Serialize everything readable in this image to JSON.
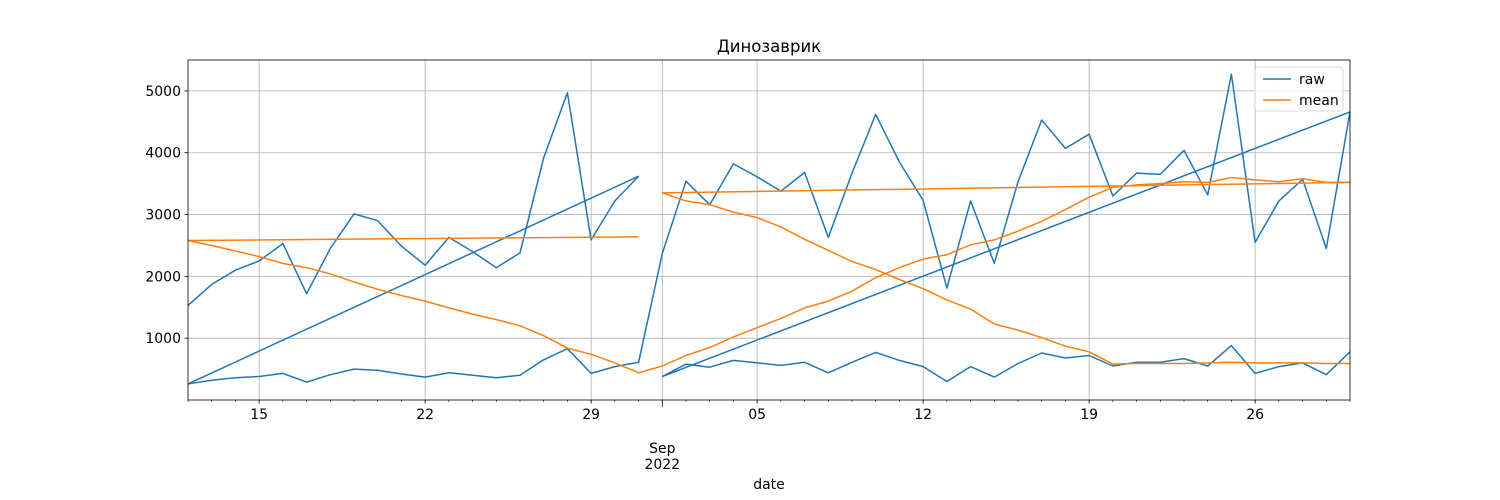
{
  "chart_data": {
    "type": "line",
    "title": "Динозаврик",
    "xlabel": "date",
    "ylabel": "",
    "xlim": [
      "2022-08-12",
      "2022-09-30"
    ],
    "ylim": [
      0,
      5500
    ],
    "grid": true,
    "legend": "top-right",
    "colors": {
      "raw": "#1f77b4",
      "mean": "#ff7f0e"
    },
    "x_ticks": [
      {
        "date": "2022-08-15",
        "label": "15"
      },
      {
        "date": "2022-08-22",
        "label": "22"
      },
      {
        "date": "2022-08-29",
        "label": "29"
      },
      {
        "date": "2022-09-01",
        "label": "Sep",
        "label2": "2022",
        "major": true
      },
      {
        "date": "2022-09-05",
        "label": "05"
      },
      {
        "date": "2022-09-12",
        "label": "12"
      },
      {
        "date": "2022-09-19",
        "label": "19"
      },
      {
        "date": "2022-09-26",
        "label": "26"
      }
    ],
    "y_ticks": [
      1000,
      2000,
      3000,
      4000,
      5000
    ],
    "series": [
      {
        "name": "raw",
        "color": "#1f77b4",
        "segments": [
          [
            [
              "2022-08-12",
              1530
            ],
            [
              "2022-08-13",
              1870
            ],
            [
              "2022-08-14",
              2100
            ],
            [
              "2022-08-15",
              2250
            ],
            [
              "2022-08-16",
              2530
            ],
            [
              "2022-08-17",
              1720
            ],
            [
              "2022-08-18",
              2450
            ],
            [
              "2022-08-19",
              3010
            ],
            [
              "2022-08-20",
              2900
            ],
            [
              "2022-08-21",
              2490
            ],
            [
              "2022-08-22",
              2180
            ],
            [
              "2022-08-23",
              2630
            ],
            [
              "2022-08-24",
              2400
            ],
            [
              "2022-08-25",
              2140
            ],
            [
              "2022-08-26",
              2380
            ],
            [
              "2022-08-27",
              3920
            ],
            [
              "2022-08-28",
              4970
            ],
            [
              "2022-08-29",
              2590
            ],
            [
              "2022-08-30",
              3220
            ],
            [
              "2022-08-31",
              3620
            ]
          ],
          [
            [
              "2022-08-12",
              260
            ],
            [
              "2022-08-31",
              3620
            ]
          ],
          [
            [
              "2022-08-12",
              260
            ],
            [
              "2022-08-13",
              320
            ],
            [
              "2022-08-14",
              360
            ],
            [
              "2022-08-15",
              380
            ],
            [
              "2022-08-16",
              430
            ],
            [
              "2022-08-17",
              290
            ],
            [
              "2022-08-18",
              410
            ],
            [
              "2022-08-19",
              500
            ],
            [
              "2022-08-20",
              480
            ],
            [
              "2022-08-21",
              420
            ],
            [
              "2022-08-22",
              370
            ],
            [
              "2022-08-23",
              440
            ],
            [
              "2022-08-24",
              400
            ],
            [
              "2022-08-25",
              360
            ],
            [
              "2022-08-26",
              400
            ],
            [
              "2022-08-27",
              650
            ],
            [
              "2022-08-28",
              830
            ],
            [
              "2022-08-29",
              430
            ],
            [
              "2022-08-30",
              540
            ],
            [
              "2022-08-31",
              610
            ],
            [
              "2022-09-01",
              2370
            ],
            [
              "2022-09-02",
              3540
            ],
            [
              "2022-09-03",
              3160
            ],
            [
              "2022-09-04",
              3820
            ],
            [
              "2022-09-05",
              3610
            ],
            [
              "2022-09-06",
              3380
            ],
            [
              "2022-09-07",
              3680
            ],
            [
              "2022-09-08",
              2630
            ],
            [
              "2022-09-09",
              3670
            ],
            [
              "2022-09-10",
              4620
            ],
            [
              "2022-09-11",
              3850
            ],
            [
              "2022-09-12",
              3230
            ],
            [
              "2022-09-13",
              1810
            ],
            [
              "2022-09-14",
              3220
            ],
            [
              "2022-09-15",
              2210
            ],
            [
              "2022-09-16",
              3530
            ],
            [
              "2022-09-17",
              4530
            ],
            [
              "2022-09-18",
              4070
            ],
            [
              "2022-09-19",
              4300
            ],
            [
              "2022-09-20",
              3300
            ],
            [
              "2022-09-21",
              3670
            ],
            [
              "2022-09-22",
              3650
            ],
            [
              "2022-09-23",
              4040
            ],
            [
              "2022-09-24",
              3320
            ],
            [
              "2022-09-25",
              5270
            ],
            [
              "2022-09-26",
              2550
            ],
            [
              "2022-09-27",
              3220
            ],
            [
              "2022-09-28",
              3570
            ],
            [
              "2022-09-29",
              2450
            ],
            [
              "2022-09-30",
              4660
            ]
          ],
          [
            [
              "2022-09-01",
              380
            ],
            [
              "2022-09-30",
              4660
            ]
          ],
          [
            [
              "2022-09-01",
              380
            ],
            [
              "2022-09-02",
              580
            ],
            [
              "2022-09-03",
              530
            ],
            [
              "2022-09-04",
              640
            ],
            [
              "2022-09-05",
              600
            ],
            [
              "2022-09-06",
              560
            ],
            [
              "2022-09-07",
              610
            ],
            [
              "2022-09-08",
              440
            ],
            [
              "2022-09-09",
              610
            ],
            [
              "2022-09-10",
              770
            ],
            [
              "2022-09-11",
              640
            ],
            [
              "2022-09-12",
              540
            ],
            [
              "2022-09-13",
              300
            ],
            [
              "2022-09-14",
              540
            ],
            [
              "2022-09-15",
              370
            ],
            [
              "2022-09-16",
              590
            ],
            [
              "2022-09-17",
              760
            ],
            [
              "2022-09-18",
              680
            ],
            [
              "2022-09-19",
              720
            ],
            [
              "2022-09-20",
              550
            ],
            [
              "2022-09-21",
              610
            ],
            [
              "2022-09-22",
              610
            ],
            [
              "2022-09-23",
              670
            ],
            [
              "2022-09-24",
              550
            ],
            [
              "2022-09-25",
              880
            ],
            [
              "2022-09-26",
              430
            ],
            [
              "2022-09-27",
              540
            ],
            [
              "2022-09-28",
              600
            ],
            [
              "2022-09-29",
              410
            ],
            [
              "2022-09-30",
              780
            ]
          ]
        ]
      },
      {
        "name": "mean",
        "color": "#ff7f0e",
        "segments": [
          [
            [
              "2022-08-12",
              2580
            ],
            [
              "2022-08-31",
              2640
            ]
          ],
          [
            [
              "2022-08-12",
              2580
            ],
            [
              "2022-08-13",
              2500
            ],
            [
              "2022-08-14",
              2410
            ],
            [
              "2022-08-15",
              2320
            ],
            [
              "2022-08-16",
              2210
            ],
            [
              "2022-08-17",
              2140
            ],
            [
              "2022-08-18",
              2040
            ],
            [
              "2022-08-19",
              1910
            ],
            [
              "2022-08-20",
              1790
            ],
            [
              "2022-08-21",
              1690
            ],
            [
              "2022-08-22",
              1600
            ],
            [
              "2022-08-23",
              1490
            ],
            [
              "2022-08-24",
              1390
            ],
            [
              "2022-08-25",
              1300
            ],
            [
              "2022-08-26",
              1200
            ],
            [
              "2022-08-27",
              1040
            ],
            [
              "2022-08-28",
              840
            ],
            [
              "2022-08-29",
              740
            ],
            [
              "2022-08-30",
              600
            ],
            [
              "2022-08-31",
              440
            ],
            [
              "2022-09-01",
              550
            ],
            [
              "2022-09-02",
              720
            ],
            [
              "2022-09-03",
              850
            ],
            [
              "2022-09-04",
              1020
            ],
            [
              "2022-09-05",
              1170
            ],
            [
              "2022-09-06",
              1320
            ],
            [
              "2022-09-07",
              1490
            ],
            [
              "2022-09-08",
              1600
            ],
            [
              "2022-09-09",
              1760
            ],
            [
              "2022-09-10",
              1980
            ],
            [
              "2022-09-11",
              2140
            ],
            [
              "2022-09-12",
              2280
            ],
            [
              "2022-09-13",
              2350
            ],
            [
              "2022-09-14",
              2510
            ],
            [
              "2022-09-15",
              2590
            ],
            [
              "2022-09-16",
              2730
            ],
            [
              "2022-09-17",
              2890
            ],
            [
              "2022-09-18",
              3080
            ],
            [
              "2022-09-19",
              3280
            ],
            [
              "2022-09-20",
              3440
            ],
            [
              "2022-09-21",
              3480
            ],
            [
              "2022-09-22",
              3500
            ],
            [
              "2022-09-23",
              3530
            ],
            [
              "2022-09-24",
              3520
            ],
            [
              "2022-09-25",
              3600
            ],
            [
              "2022-09-26",
              3560
            ],
            [
              "2022-09-27",
              3530
            ],
            [
              "2022-09-28",
              3580
            ],
            [
              "2022-09-29",
              3520
            ],
            [
              "2022-09-30",
              3520
            ]
          ],
          [
            [
              "2022-09-01",
              3350
            ],
            [
              "2022-09-30",
              3520
            ]
          ],
          [
            [
              "2022-09-01",
              3350
            ],
            [
              "2022-09-02",
              3220
            ],
            [
              "2022-09-03",
              3160
            ],
            [
              "2022-09-04",
              3040
            ],
            [
              "2022-09-05",
              2950
            ],
            [
              "2022-09-06",
              2800
            ],
            [
              "2022-09-07",
              2600
            ],
            [
              "2022-09-08",
              2420
            ],
            [
              "2022-09-09",
              2240
            ],
            [
              "2022-09-10",
              2110
            ],
            [
              "2022-09-11",
              1950
            ],
            [
              "2022-09-12",
              1800
            ],
            [
              "2022-09-13",
              1620
            ],
            [
              "2022-09-14",
              1470
            ],
            [
              "2022-09-15",
              1230
            ],
            [
              "2022-09-16",
              1130
            ],
            [
              "2022-09-17",
              1010
            ],
            [
              "2022-09-18",
              870
            ],
            [
              "2022-09-19",
              780
            ],
            [
              "2022-09-20",
              580
            ],
            [
              "2022-09-21",
              590
            ],
            [
              "2022-09-22",
              590
            ],
            [
              "2022-09-23",
              590
            ],
            [
              "2022-09-24",
              600
            ],
            [
              "2022-09-25",
              610
            ],
            [
              "2022-09-26",
              600
            ],
            [
              "2022-09-27",
              600
            ],
            [
              "2022-09-28",
              600
            ],
            [
              "2022-09-29",
              590
            ],
            [
              "2022-09-30",
              590
            ]
          ]
        ]
      }
    ]
  }
}
